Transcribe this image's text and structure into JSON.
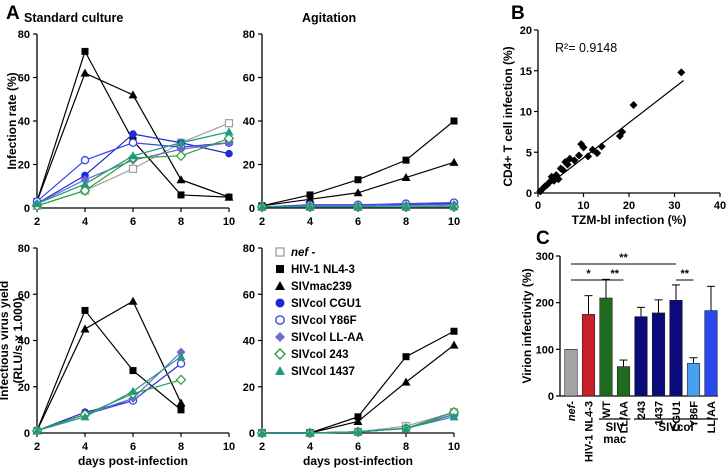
{
  "panel_labels": {
    "a": "A",
    "b": "B",
    "c": "C"
  },
  "series_colors": {
    "nef -": "#9e9e9e",
    "HIV-1 NL4-3": "#000000",
    "SIVmac239": "#000000",
    "SIVcol CGU1": "#1f2bd6",
    "SIVcol Y86F": "#3a46e8",
    "SIVcol LL-AA": "#6a6ad0",
    "SIVcol 243": "#2f9e3a",
    "SIVcol 1437": "#1f9a80"
  },
  "legend": {
    "nef": "nef -",
    "nl43": "HIV-1 NL4-3",
    "mac": "SIVmac239",
    "cgu1": "SIVcol CGU1",
    "y86f": "SIVcol Y86F",
    "llaa": "SIVcol LL-AA",
    "c243": "SIVcol 243",
    "c1437": "SIVcol 1437"
  },
  "chart_data": [
    {
      "id": "a_top_left",
      "type": "line",
      "title": "Standard culture",
      "ylabel": "Infection rate (%)",
      "xlabel": "",
      "x": [
        2,
        4,
        6,
        8,
        10
      ],
      "xlim": [
        2,
        10
      ],
      "ylim": [
        0,
        80
      ],
      "yticks": [
        0,
        20,
        40,
        60,
        80
      ],
      "series": [
        {
          "name": "nef -",
          "values": [
            1,
            8,
            18,
            30,
            39
          ]
        },
        {
          "name": "HIV-1 NL4-3",
          "values": [
            3,
            72,
            31,
            6,
            5
          ]
        },
        {
          "name": "SIVmac239",
          "values": [
            3,
            62,
            52,
            13,
            5
          ]
        },
        {
          "name": "SIVcol CGU1",
          "values": [
            2,
            15,
            34,
            30,
            25
          ]
        },
        {
          "name": "SIVcol Y86F",
          "values": [
            3,
            22,
            30,
            28,
            30
          ]
        },
        {
          "name": "SIVcol LL-AA",
          "values": [
            2,
            13,
            22,
            27,
            30
          ]
        },
        {
          "name": "SIVcol 243",
          "values": [
            1,
            8,
            23,
            24,
            32
          ]
        },
        {
          "name": "SIVcol 1437",
          "values": [
            2,
            11,
            24,
            30,
            35
          ]
        }
      ]
    },
    {
      "id": "a_top_right",
      "type": "line",
      "title": "Agitation",
      "ylabel": "",
      "xlabel": "",
      "x": [
        2,
        4,
        6,
        8,
        10
      ],
      "xlim": [
        2,
        10
      ],
      "ylim": [
        0,
        80
      ],
      "yticks": [
        0,
        20,
        40,
        60,
        80
      ],
      "series": [
        {
          "name": "nef -",
          "values": [
            0.5,
            0.5,
            0.5,
            0.5,
            1
          ]
        },
        {
          "name": "HIV-1 NL4-3",
          "values": [
            1,
            6,
            13,
            22,
            40
          ]
        },
        {
          "name": "SIVmac239",
          "values": [
            1,
            4,
            7,
            14,
            21
          ]
        },
        {
          "name": "SIVcol CGU1",
          "values": [
            0.5,
            1,
            1,
            1.5,
            2
          ]
        },
        {
          "name": "SIVcol Y86F",
          "values": [
            0.5,
            1.5,
            1.5,
            2,
            2.5
          ]
        },
        {
          "name": "SIVcol LL-AA",
          "values": [
            0.5,
            1,
            1,
            1.2,
            1.5
          ]
        },
        {
          "name": "SIVcol 243",
          "values": [
            0.5,
            0.5,
            0.5,
            0.5,
            0.5
          ]
        },
        {
          "name": "SIVcol 1437",
          "values": [
            0.5,
            0.5,
            0.5,
            0.5,
            0.5
          ]
        }
      ]
    },
    {
      "id": "a_bottom_left",
      "type": "line",
      "title": "",
      "ylabel": "Infectious virus yield (RLU/s x 1.000)",
      "xlabel": "days post-infection",
      "x": [
        2,
        4,
        6,
        8,
        10
      ],
      "xlim": [
        2,
        10
      ],
      "ylim": [
        0,
        80
      ],
      "yticks": [
        0,
        20,
        40,
        60,
        80
      ],
      "xticks": [
        2,
        4,
        6,
        8,
        10
      ],
      "series": [
        {
          "name": "HIV-1 NL4-3",
          "values": [
            1,
            53,
            27,
            10,
            null
          ]
        },
        {
          "name": "SIVmac239",
          "values": [
            1,
            45,
            57,
            13,
            null
          ]
        },
        {
          "name": "SIVcol CGU1",
          "values": [
            1,
            9,
            14,
            30,
            null
          ]
        },
        {
          "name": "SIVcol Y86F",
          "values": [
            1,
            8,
            14,
            30,
            null
          ]
        },
        {
          "name": "SIVcol LL-AA",
          "values": [
            1,
            8,
            15,
            35,
            null
          ]
        },
        {
          "name": "SIVcol 243",
          "values": [
            1,
            8,
            17,
            23,
            null
          ]
        },
        {
          "name": "SIVcol 1437",
          "values": [
            1,
            7,
            18,
            33,
            null
          ]
        }
      ]
    },
    {
      "id": "a_bottom_right",
      "type": "line",
      "title": "",
      "ylabel": "",
      "xlabel": "days post-infection",
      "x": [
        2,
        4,
        6,
        8,
        10
      ],
      "xlim": [
        2,
        10
      ],
      "ylim": [
        0,
        80
      ],
      "yticks": [
        0,
        20,
        40,
        60,
        80
      ],
      "xticks": [
        2,
        4,
        6,
        8,
        10
      ],
      "series": [
        {
          "name": "nef -",
          "values": [
            0,
            0,
            0.5,
            3,
            9
          ]
        },
        {
          "name": "HIV-1 NL4-3",
          "values": [
            0,
            0,
            7,
            33,
            44
          ]
        },
        {
          "name": "SIVmac239",
          "values": [
            0,
            0,
            5,
            22,
            38
          ]
        },
        {
          "name": "SIVcol CGU1",
          "values": [
            0,
            0,
            0.5,
            2,
            8
          ]
        },
        {
          "name": "SIVcol Y86F",
          "values": [
            0,
            0,
            0.5,
            2,
            8
          ]
        },
        {
          "name": "SIVcol LL-AA",
          "values": [
            0,
            0,
            0.5,
            2,
            8
          ]
        },
        {
          "name": "SIVcol 243",
          "values": [
            0,
            0,
            0.5,
            2,
            9
          ]
        },
        {
          "name": "SIVcol 1437",
          "values": [
            0,
            0,
            0.5,
            2,
            7
          ]
        }
      ]
    },
    {
      "id": "b_scatter",
      "type": "scatter",
      "title": "",
      "xlabel": "TZM-bl infection (%)",
      "ylabel": "CD4+ T cell infection (%)",
      "annotation": "R²= 0.9148",
      "xlim": [
        0,
        40
      ],
      "ylim": [
        0,
        20
      ],
      "xticks": [
        0,
        10,
        20,
        30,
        40
      ],
      "yticks": [
        0,
        5,
        10,
        15,
        20
      ],
      "trendline": {
        "x": [
          0,
          32
        ],
        "y": [
          0,
          13.8
        ]
      },
      "points": [
        [
          0.5,
          0.2
        ],
        [
          1,
          0.5
        ],
        [
          1.5,
          0.8
        ],
        [
          2,
          1.0
        ],
        [
          2.5,
          1.3
        ],
        [
          3,
          2.0
        ],
        [
          3.5,
          1.5
        ],
        [
          4,
          2.2
        ],
        [
          4.5,
          1.7
        ],
        [
          5,
          3.0
        ],
        [
          5.5,
          2.8
        ],
        [
          6,
          3.8
        ],
        [
          6.5,
          3.5
        ],
        [
          7,
          4.2
        ],
        [
          8,
          4.0
        ],
        [
          9,
          4.6
        ],
        [
          9.5,
          6.0
        ],
        [
          10,
          5.6
        ],
        [
          11,
          4.5
        ],
        [
          12,
          5.3
        ],
        [
          13,
          4.9
        ],
        [
          14,
          5.7
        ],
        [
          18,
          7.0
        ],
        [
          18.5,
          7.5
        ],
        [
          21,
          10.8
        ],
        [
          31.5,
          14.8
        ]
      ]
    },
    {
      "id": "c_bar",
      "type": "bar",
      "title": "",
      "xlabel": "",
      "ylabel": "Virion infectivity (%)",
      "ylim": [
        0,
        300
      ],
      "yticks": [
        0,
        100,
        200,
        300
      ],
      "categories": [
        "nef-",
        "HIV-1 NL4-3",
        "WT",
        "LL/AA",
        "243",
        "1437",
        "CGU1",
        "Y86F",
        "LL/AA"
      ],
      "values": [
        100,
        175,
        210,
        63,
        170,
        178,
        205,
        70,
        183
      ],
      "errors": [
        0,
        40,
        40,
        14,
        20,
        28,
        33,
        12,
        52
      ],
      "colors": [
        "#a3a3a3",
        "#c8202b",
        "#1f6b1f",
        "#1f6b1f",
        "#0a0a7a",
        "#0a0a7a",
        "#0a0a7a",
        "#4aa0f0",
        "#2a48f0"
      ],
      "groups": [
        {
          "label": "SIV mac",
          "from": 2,
          "to": 3
        },
        {
          "label": "SIVcol",
          "from": 4,
          "to": 8
        }
      ],
      "significance": [
        {
          "label": "**",
          "from": 0,
          "to": 6
        },
        {
          "label": "*",
          "from": 0,
          "to": 2
        },
        {
          "label": "**",
          "from": 2,
          "to": 3
        },
        {
          "label": "**",
          "from": 6,
          "to": 7
        }
      ]
    }
  ]
}
